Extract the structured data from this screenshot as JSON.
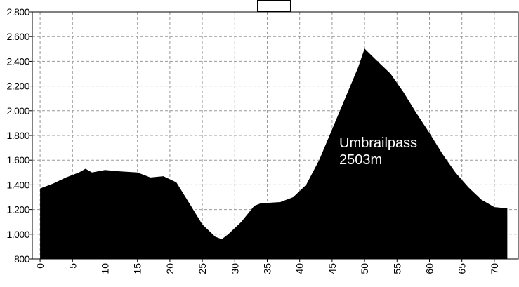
{
  "chart_data": {
    "type": "area",
    "x": [
      0,
      2,
      4,
      6,
      7,
      8,
      10,
      12,
      15,
      17,
      19,
      21,
      23,
      25,
      27,
      28,
      29,
      31,
      33,
      34,
      37,
      39,
      41,
      43,
      45,
      47,
      49,
      50,
      52,
      54,
      56,
      58,
      60,
      62,
      64,
      66,
      68,
      70,
      72
    ],
    "values": [
      1370,
      1410,
      1460,
      1500,
      1530,
      1500,
      1520,
      1510,
      1500,
      1460,
      1470,
      1420,
      1250,
      1080,
      980,
      960,
      1000,
      1100,
      1230,
      1250,
      1260,
      1300,
      1400,
      1600,
      1850,
      2100,
      2350,
      2503,
      2400,
      2300,
      2150,
      1980,
      1820,
      1650,
      1500,
      1380,
      1280,
      1220,
      1210
    ],
    "color": "#000000",
    "xlim": [
      -1.2,
      73.8
    ],
    "xticks": [
      0,
      5,
      10,
      15,
      20,
      25,
      30,
      35,
      40,
      45,
      50,
      55,
      60,
      65,
      70
    ],
    "ylim": [
      800,
      2800
    ],
    "yticks": [
      {
        "value": 800,
        "label": "800"
      },
      {
        "value": 1000,
        "label": "1.000"
      },
      {
        "value": 1200,
        "label": "1.200"
      },
      {
        "value": 1400,
        "label": "1.400"
      },
      {
        "value": 1600,
        "label": "1.600"
      },
      {
        "value": 1800,
        "label": "1.800"
      },
      {
        "value": 2000,
        "label": "2.000"
      },
      {
        "value": 2200,
        "label": "2.200"
      },
      {
        "value": 2400,
        "label": "2.400"
      },
      {
        "value": 2600,
        "label": "2.600"
      },
      {
        "value": 2800,
        "label": "2.800"
      }
    ],
    "grid": true,
    "annotation": [
      "Umbrailpass",
      "2503m"
    ]
  }
}
